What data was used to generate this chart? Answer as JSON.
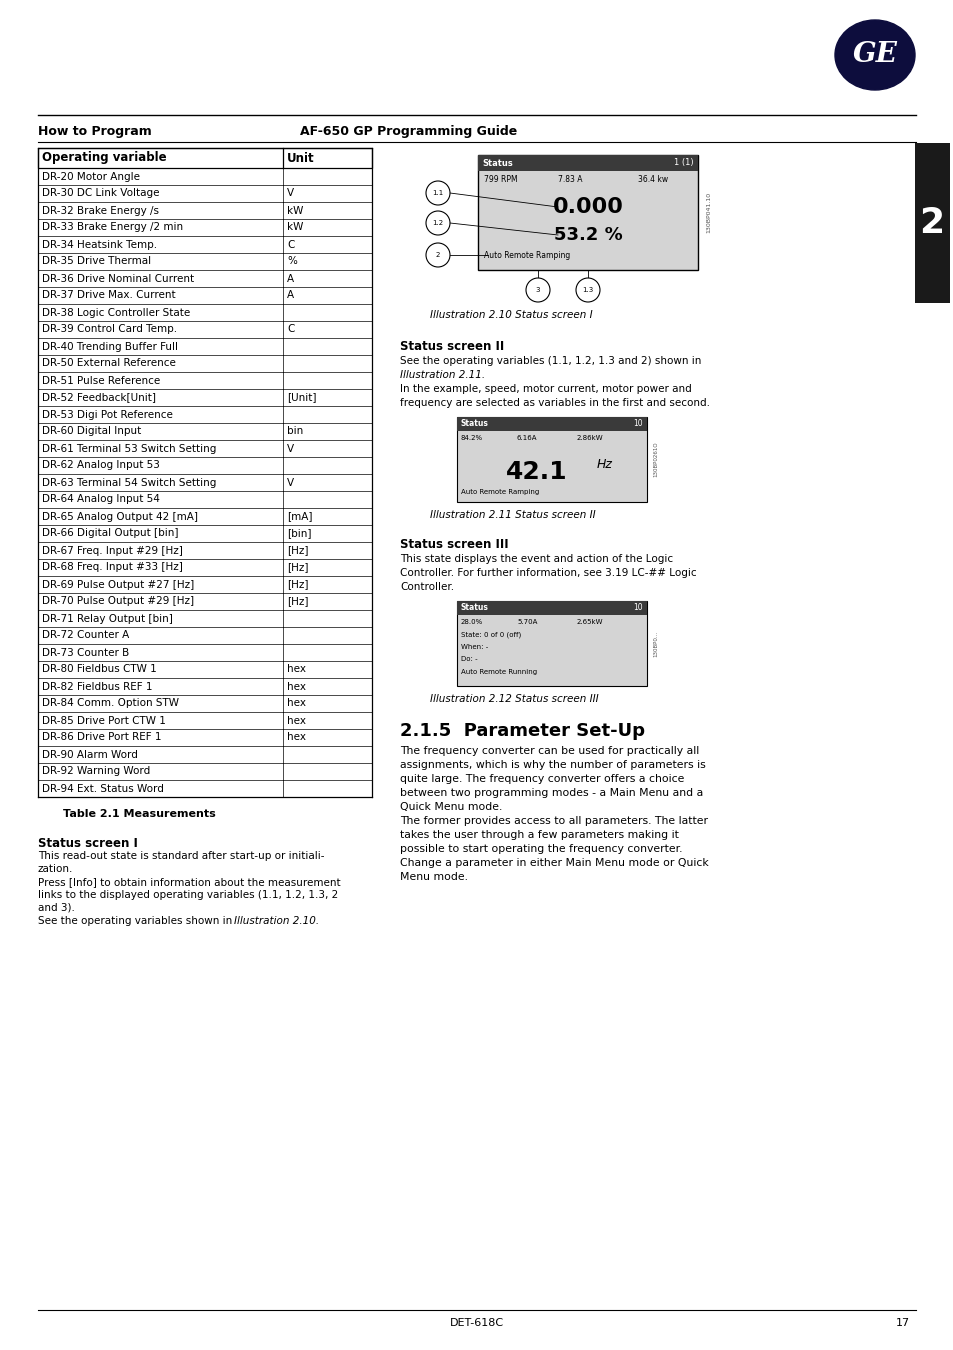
{
  "page_title_left": "How to Program",
  "page_title_right": "AF-650 GP Programming Guide",
  "footer_text": "DET-618C",
  "footer_page": "17",
  "table_header": [
    "Operating variable",
    "Unit"
  ],
  "table_rows": [
    [
      "DR-20 Motor Angle",
      ""
    ],
    [
      "DR-30 DC Link Voltage",
      "V"
    ],
    [
      "DR-32 Brake Energy /s",
      "kW"
    ],
    [
      "DR-33 Brake Energy /2 min",
      "kW"
    ],
    [
      "DR-34 Heatsink Temp.",
      "C"
    ],
    [
      "DR-35 Drive Thermal",
      "%"
    ],
    [
      "DR-36 Drive Nominal Current",
      "A"
    ],
    [
      "DR-37 Drive Max. Current",
      "A"
    ],
    [
      "DR-38 Logic Controller State",
      ""
    ],
    [
      "DR-39 Control Card Temp.",
      "C"
    ],
    [
      "DR-40 Trending Buffer Full",
      ""
    ],
    [
      "DR-50 External Reference",
      ""
    ],
    [
      "DR-51 Pulse Reference",
      ""
    ],
    [
      "DR-52 Feedback[Unit]",
      "[Unit]"
    ],
    [
      "DR-53 Digi Pot Reference",
      ""
    ],
    [
      "DR-60 Digital Input",
      "bin"
    ],
    [
      "DR-61 Terminal 53 Switch Setting",
      "V"
    ],
    [
      "DR-62 Analog Input 53",
      ""
    ],
    [
      "DR-63 Terminal 54 Switch Setting",
      "V"
    ],
    [
      "DR-64 Analog Input 54",
      ""
    ],
    [
      "DR-65 Analog Output 42 [mA]",
      "[mA]"
    ],
    [
      "DR-66 Digital Output [bin]",
      "[bin]"
    ],
    [
      "DR-67 Freq. Input #29 [Hz]",
      "[Hz]"
    ],
    [
      "DR-68 Freq. Input #33 [Hz]",
      "[Hz]"
    ],
    [
      "DR-69 Pulse Output #27 [Hz]",
      "[Hz]"
    ],
    [
      "DR-70 Pulse Output #29 [Hz]",
      "[Hz]"
    ],
    [
      "DR-71 Relay Output [bin]",
      ""
    ],
    [
      "DR-72 Counter A",
      ""
    ],
    [
      "DR-73 Counter B",
      ""
    ],
    [
      "DR-80 Fieldbus CTW 1",
      "hex"
    ],
    [
      "DR-82 Fieldbus REF 1",
      "hex"
    ],
    [
      "DR-84 Comm. Option STW",
      "hex"
    ],
    [
      "DR-85 Drive Port CTW 1",
      "hex"
    ],
    [
      "DR-86 Drive Port REF 1",
      "hex"
    ],
    [
      "DR-90 Alarm Word",
      ""
    ],
    [
      "DR-92 Warning Word",
      ""
    ],
    [
      "DR-94 Ext. Status Word",
      ""
    ]
  ],
  "table_caption": "Table 2.1 Measurements",
  "section_heading": "2.1.5  Parameter Set-Up",
  "illus_210_caption": "Illustration 2.10 Status screen I",
  "illus_211_caption": "Illustration 2.11 Status screen II",
  "illus_212_caption": "Illustration 2.12 Status screen III",
  "sidebar_number": "2",
  "bg_color": "#ffffff"
}
